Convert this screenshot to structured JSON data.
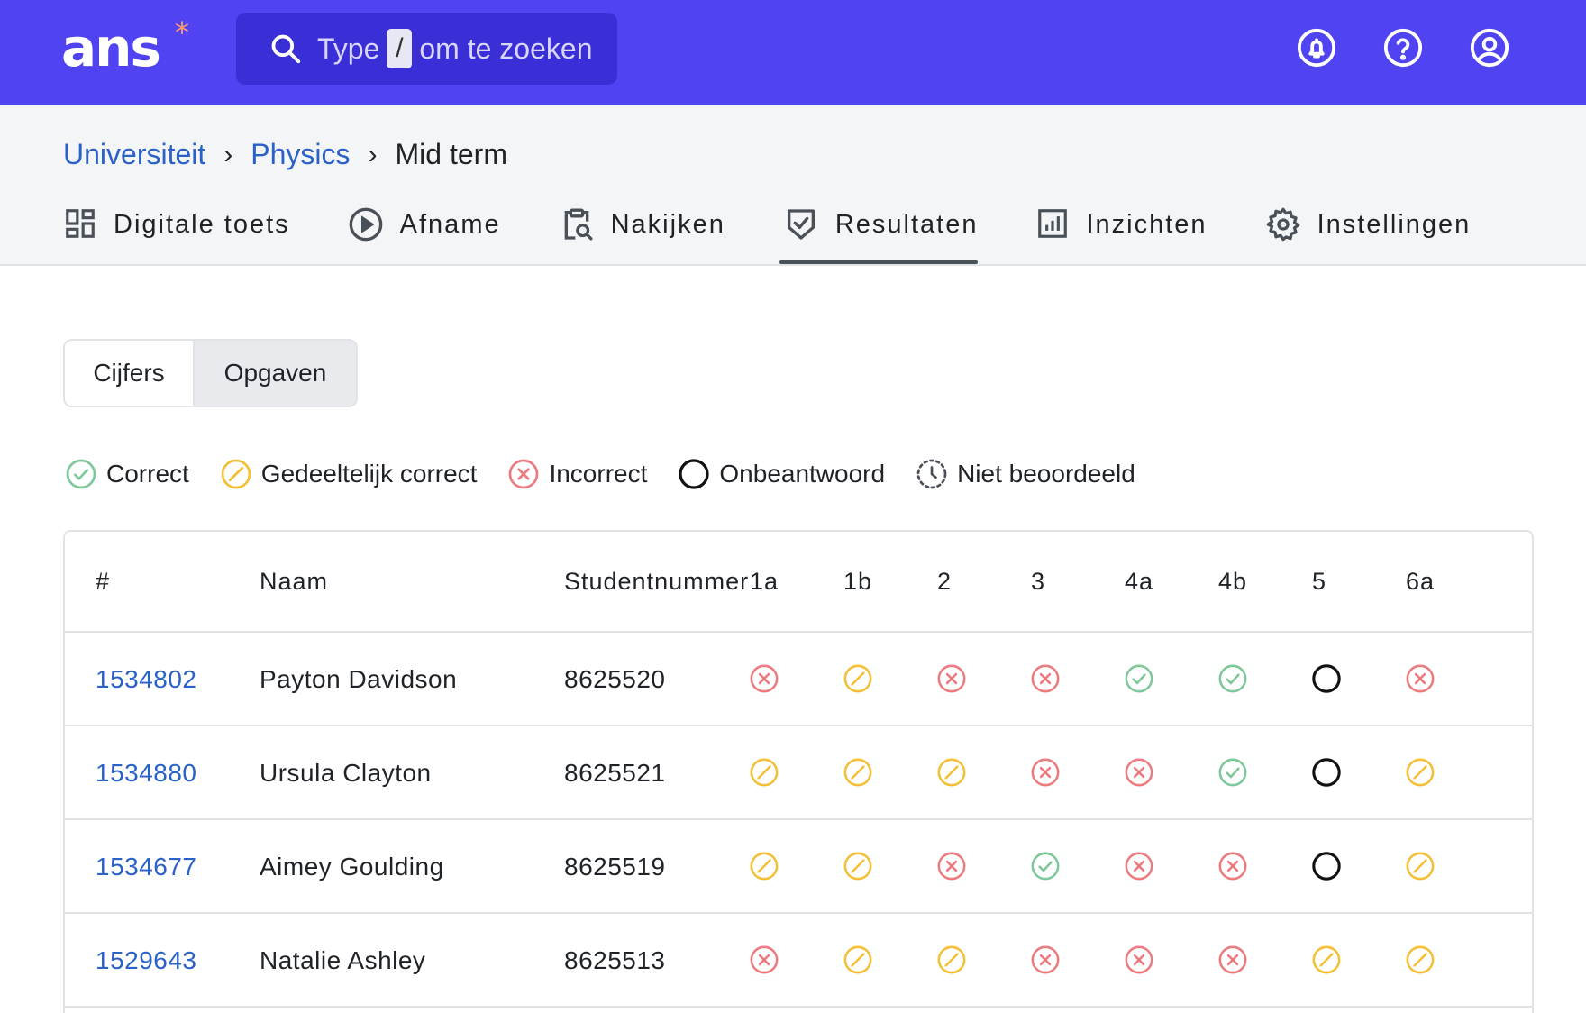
{
  "app": {
    "logo": "ans",
    "logo_star": "*",
    "search": {
      "prefix": "Type",
      "key": "/",
      "suffix": "om te zoeken"
    },
    "top_icons": [
      "bell-icon",
      "help-icon",
      "user-icon"
    ],
    "colors": {
      "brand": "#5044f2",
      "link": "#2a62c9",
      "correct": "#7ec89c",
      "partial": "#f3bf37",
      "incorrect": "#ec7b7f",
      "unanswered": "#111111"
    }
  },
  "breadcrumb": {
    "items": [
      "Universiteit",
      "Physics"
    ],
    "current": "Mid term",
    "separator": "›"
  },
  "tabs": [
    {
      "label": "Digitale toets",
      "icon": "dashboard-icon"
    },
    {
      "label": "Afname",
      "icon": "play-icon"
    },
    {
      "label": "Nakijken",
      "icon": "clipboard-search-icon"
    },
    {
      "label": "Resultaten",
      "icon": "shield-check-icon",
      "active": true
    },
    {
      "label": "Inzichten",
      "icon": "bar-chart-icon"
    },
    {
      "label": "Instellingen",
      "icon": "gear-icon"
    }
  ],
  "segmented": {
    "options": [
      "Cijfers",
      "Opgaven"
    ],
    "selected": "Opgaven"
  },
  "legend": [
    {
      "label": "Correct",
      "status": "correct"
    },
    {
      "label": "Gedeeltelijk correct",
      "status": "partial"
    },
    {
      "label": "Incorrect",
      "status": "incorrect"
    },
    {
      "label": "Onbeantwoord",
      "status": "unanswered"
    },
    {
      "label": "Niet beoordeeld",
      "status": "ungraded"
    }
  ],
  "table": {
    "headers": {
      "num": "#",
      "name": "Naam",
      "student": "Studentnummer",
      "questions": [
        "1a",
        "1b",
        "2",
        "3",
        "4a",
        "4b",
        "5",
        "6a"
      ]
    },
    "rows": [
      {
        "id": "1534802",
        "name": "Payton Davidson",
        "student": "8625520",
        "results": [
          "incorrect",
          "partial",
          "incorrect",
          "incorrect",
          "correct",
          "correct",
          "unanswered",
          "incorrect"
        ]
      },
      {
        "id": "1534880",
        "name": "Ursula Clayton",
        "student": "8625521",
        "results": [
          "partial",
          "partial",
          "partial",
          "incorrect",
          "incorrect",
          "correct",
          "unanswered",
          "partial"
        ]
      },
      {
        "id": "1534677",
        "name": "Aimey Goulding",
        "student": "8625519",
        "results": [
          "partial",
          "partial",
          "incorrect",
          "correct",
          "incorrect",
          "incorrect",
          "unanswered",
          "partial"
        ]
      },
      {
        "id": "1529643",
        "name": "Natalie Ashley",
        "student": "8625513",
        "results": [
          "incorrect",
          "partial",
          "partial",
          "incorrect",
          "incorrect",
          "incorrect",
          "partial",
          "partial"
        ]
      }
    ]
  }
}
